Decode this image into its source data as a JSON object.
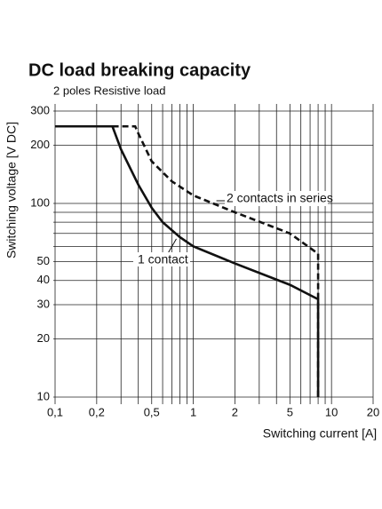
{
  "chart_data": {
    "type": "line",
    "title": "DC load breaking capacity",
    "subtitle": "2 poles Resistive load",
    "xlabel": "Switching current [A]",
    "ylabel": "Switching voltage [V DC]",
    "xscale": "log",
    "yscale": "log",
    "xlim": [
      0.1,
      20
    ],
    "ylim": [
      10,
      300
    ],
    "xticks": [
      {
        "value": 0.1,
        "label": "0,1"
      },
      {
        "value": 0.2,
        "label": "0,2"
      },
      {
        "value": 0.5,
        "label": "0,5"
      },
      1,
      2,
      5,
      10,
      20
    ],
    "yticks": [
      10,
      20,
      30,
      40,
      50,
      100,
      200,
      300
    ],
    "xgrid": [
      0.1,
      0.2,
      0.3,
      0.4,
      0.5,
      0.6,
      0.7,
      0.8,
      0.9,
      1,
      2,
      3,
      4,
      5,
      6,
      7,
      8,
      9,
      10,
      20
    ],
    "ygrid": [
      10,
      20,
      30,
      40,
      50,
      60,
      70,
      80,
      90,
      100,
      200,
      300
    ],
    "grid": true,
    "series": [
      {
        "name": "1 contact",
        "color": "#111111",
        "dash": false,
        "x": [
          0.1,
          0.26,
          0.3,
          0.4,
          0.5,
          0.6,
          0.8,
          1,
          2,
          5,
          8,
          8
        ],
        "values": [
          250,
          250,
          190,
          125,
          95,
          80,
          67,
          60,
          49,
          38,
          32,
          10
        ]
      },
      {
        "name": "2 contacts in series",
        "color": "#111111",
        "dash": true,
        "x": [
          0.26,
          0.38,
          0.4,
          0.5,
          0.7,
          1,
          2,
          5,
          8,
          8
        ],
        "values": [
          250,
          250,
          230,
          165,
          130,
          110,
          90,
          70,
          55,
          10
        ]
      }
    ]
  }
}
